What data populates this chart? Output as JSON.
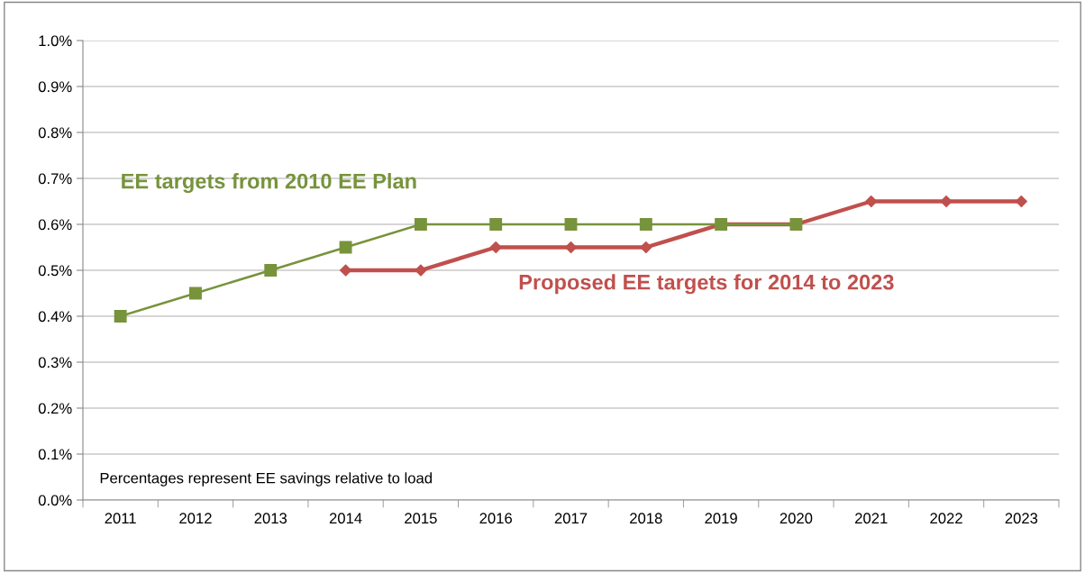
{
  "chart_data": {
    "type": "line",
    "categories": [
      "2011",
      "2012",
      "2013",
      "2014",
      "2015",
      "2016",
      "2017",
      "2018",
      "2019",
      "2020",
      "2021",
      "2022",
      "2023"
    ],
    "series": [
      {
        "name": "EE targets from 2010 EE Plan",
        "color": "#77933c",
        "marker": "square",
        "values": [
          0.4,
          0.45,
          0.5,
          0.55,
          0.6,
          0.6,
          0.6,
          0.6,
          0.6,
          0.6,
          null,
          null,
          null
        ]
      },
      {
        "name": "Proposed EE targets for 2014 to 2023",
        "color": "#c0504d",
        "marker": "diamond",
        "values": [
          null,
          null,
          null,
          0.5,
          0.5,
          0.55,
          0.55,
          0.55,
          0.6,
          0.6,
          0.65,
          0.65,
          0.65
        ]
      }
    ],
    "ylim": [
      0,
      1.0
    ],
    "yticks": [
      {
        "value": 0,
        "label": "0.0%"
      },
      {
        "value": 0.1,
        "label": "0.1%"
      },
      {
        "value": 0.2,
        "label": "0.2%"
      },
      {
        "value": 0.3,
        "label": "0.3%"
      },
      {
        "value": 0.4,
        "label": "0.4%"
      },
      {
        "value": 0.5,
        "label": "0.5%"
      },
      {
        "value": 0.6,
        "label": "0.6%"
      },
      {
        "value": 0.7,
        "label": "0.7%"
      },
      {
        "value": 0.8,
        "label": "0.8%"
      },
      {
        "value": 0.9,
        "label": "0.9%"
      },
      {
        "value": 1.0,
        "label": "1.0%"
      }
    ],
    "grid": "y",
    "legend": false,
    "annotations": [
      "Percentages represent EE savings relative to load"
    ]
  }
}
